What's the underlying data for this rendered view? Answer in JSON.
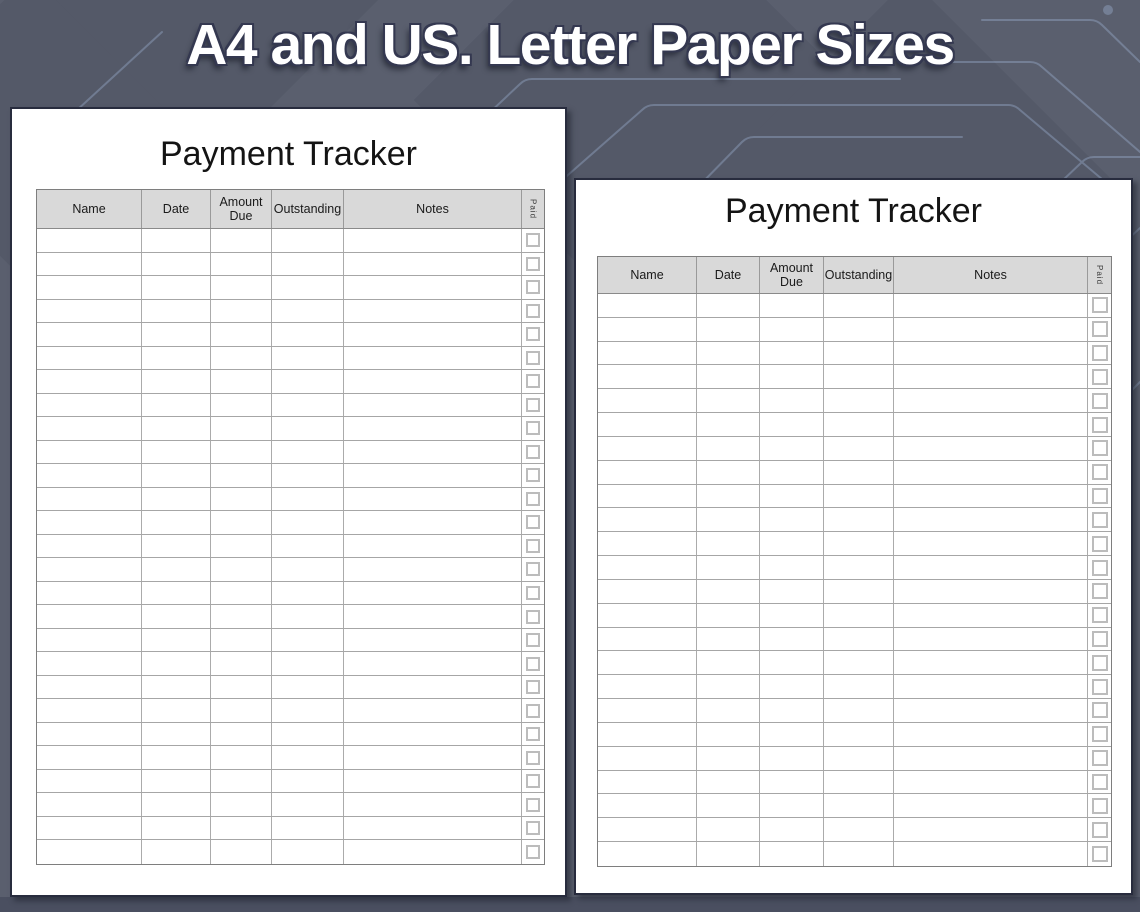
{
  "banner": {
    "title": "A4 and US. Letter Paper Sizes"
  },
  "colors": {
    "background": "#5a5f6e",
    "bottom_band": "#4a4f60",
    "circuit_trace": "#aac2e6",
    "paper": "#ffffff",
    "table_header_bg": "#d9d9d9",
    "grid_line": "#a6a6a6",
    "banner_text": "#ffffff"
  },
  "papers": [
    {
      "title": "Payment Tracker",
      "row_count": 27,
      "paid_checkboxes_state": "unchecked",
      "columns": [
        {
          "label": "Name"
        },
        {
          "label": "Date"
        },
        {
          "label": "Amount Due"
        },
        {
          "label": "Outstanding"
        },
        {
          "label": "Notes"
        },
        {
          "label": "Paid",
          "vertical": true,
          "checkbox": true
        }
      ]
    },
    {
      "title": "Payment Tracker",
      "row_count": 24,
      "paid_checkboxes_state": "unchecked",
      "columns": [
        {
          "label": "Name"
        },
        {
          "label": "Date"
        },
        {
          "label": "Amount Due"
        },
        {
          "label": "Outstanding"
        },
        {
          "label": "Notes"
        },
        {
          "label": "Paid",
          "vertical": true,
          "checkbox": true
        }
      ]
    }
  ]
}
